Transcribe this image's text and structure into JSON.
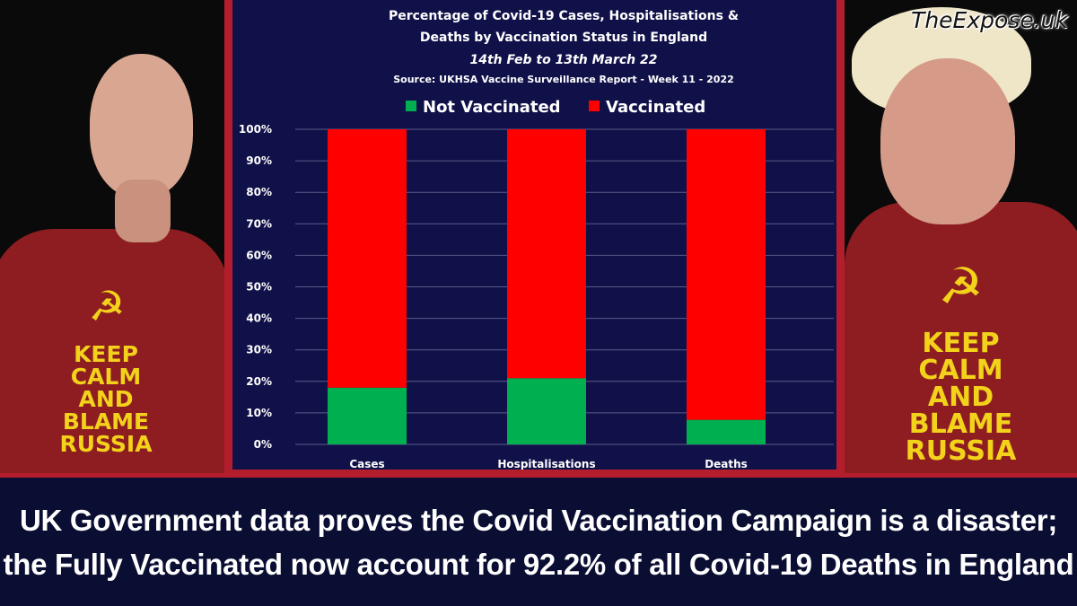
{
  "left_person": {
    "shirt_lines": "KEEP\nCALM\nAND\nBLAME\nRUSSIA",
    "symbol": "☭"
  },
  "right_person": {
    "shirt_lines": "KEEP\nCALM\nAND\nBLAME\nRUSSIA",
    "symbol": "☭",
    "brand": "TheExpose.uk"
  },
  "colors": {
    "not_vaccinated": "#00b050",
    "vaccinated": "#ff0000",
    "panel": "#11114a",
    "frame": "#b41e2c",
    "title_text": "#ffffff"
  },
  "chart_data": {
    "type": "bar",
    "stacked": true,
    "title_lines": [
      "Percentage of Covid-19 Cases, Hospitalisations &",
      "Deaths by Vaccination Status in England"
    ],
    "subtitle": "14th Feb to 13th March 22",
    "source": "Source: UKHSA Vaccine Surveillance Report - Week 11 - 2022",
    "categories": [
      "Cases",
      "Hospitalisations",
      "Deaths"
    ],
    "series": [
      {
        "name": "Not Vaccinated",
        "values": [
          18,
          21,
          7.8
        ]
      },
      {
        "name": "Vaccinated",
        "values": [
          82,
          79,
          92.2
        ]
      }
    ],
    "ylim": [
      0,
      100
    ],
    "yticks": [
      "0%",
      "10%",
      "20%",
      "30%",
      "40%",
      "50%",
      "60%",
      "70%",
      "80%",
      "90%",
      "100%"
    ],
    "legend_position": "top",
    "grid": true
  },
  "headline": {
    "line1": "UK Government data proves the Covid Vaccination Campaign is a disaster;",
    "line2": "the Fully Vaccinated now account for 92.2% of all Covid-19 Deaths in England"
  }
}
